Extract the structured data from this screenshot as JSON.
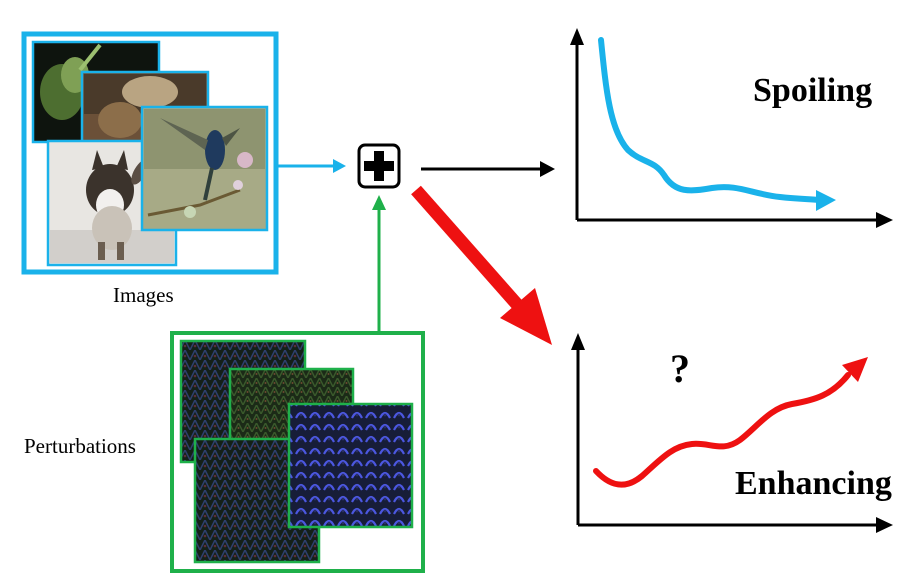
{
  "captions": {
    "images": "Images",
    "perturbations": "Perturbations",
    "spoiling": "Spoiling",
    "enhancing": "Enhancing",
    "question": "?"
  },
  "colors": {
    "images_frame": "#1ab2ea",
    "perturbations_frame": "#1fb04a",
    "spoiling_curve": "#1ab2ea",
    "enhancing_curve": "#ee1111",
    "main_arrow": "#ee1111",
    "axis": "#000000",
    "perturbation_texture_dark": "#0f1a14",
    "perturbation_texture_blue": "#3a45c8"
  },
  "icons": {
    "combine": "plus-in-box-icon"
  }
}
